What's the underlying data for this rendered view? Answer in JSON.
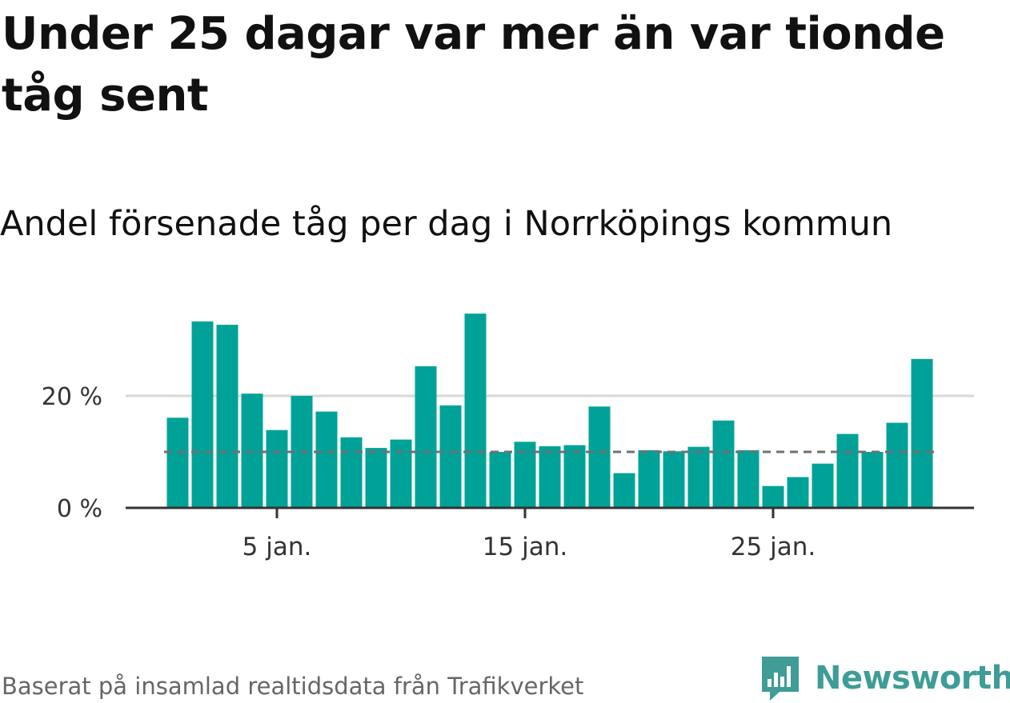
{
  "title": "Under 25 dagar var mer än var tionde tåg sent",
  "subtitle": "Andel försenade tåg per dag i Norrköpings kommun",
  "source": "Baserat på insamlad realtidsdata från Trafikverket",
  "brand": {
    "name": "Newsworthy",
    "color": "#3f9c96",
    "icon": "newsworthy-chart-bubble-icon"
  },
  "colors": {
    "bar": "#00a298",
    "reference": "#707070",
    "grid": "#d8d8d8",
    "axis": "#333333"
  },
  "chart_data": {
    "type": "bar",
    "x": [
      "2024-01-01",
      "2024-01-02",
      "2024-01-03",
      "2024-01-04",
      "2024-01-05",
      "2024-01-06",
      "2024-01-07",
      "2024-01-08",
      "2024-01-09",
      "2024-01-10",
      "2024-01-11",
      "2024-01-12",
      "2024-01-13",
      "2024-01-14",
      "2024-01-15",
      "2024-01-16",
      "2024-01-17",
      "2024-01-18",
      "2024-01-19",
      "2024-01-20",
      "2024-01-21",
      "2024-01-22",
      "2024-01-23",
      "2024-01-24",
      "2024-01-25",
      "2024-01-26",
      "2024-01-27",
      "2024-01-28",
      "2024-01-29",
      "2024-01-30",
      "2024-01-31"
    ],
    "values": [
      16.1,
      33.3,
      32.7,
      20.4,
      13.9,
      20.0,
      17.2,
      12.6,
      10.7,
      12.2,
      25.3,
      18.3,
      34.7,
      10.0,
      11.8,
      11.0,
      11.2,
      18.1,
      6.2,
      10.3,
      10.1,
      10.9,
      15.6,
      10.3,
      3.9,
      5.5,
      7.9,
      13.2,
      10.0,
      15.2,
      26.6
    ],
    "reference_line": 10,
    "yticks": [
      {
        "value": 0,
        "label": "0 %"
      },
      {
        "value": 20,
        "label": "20 %"
      }
    ],
    "xticks": [
      {
        "x": "2024-01-05",
        "label": "5 jan."
      },
      {
        "x": "2024-01-15",
        "label": "15 jan."
      },
      {
        "x": "2024-01-25",
        "label": "25 jan."
      }
    ],
    "ylim": [
      0,
      36
    ],
    "grid": true,
    "xlabel": "",
    "ylabel": ""
  }
}
